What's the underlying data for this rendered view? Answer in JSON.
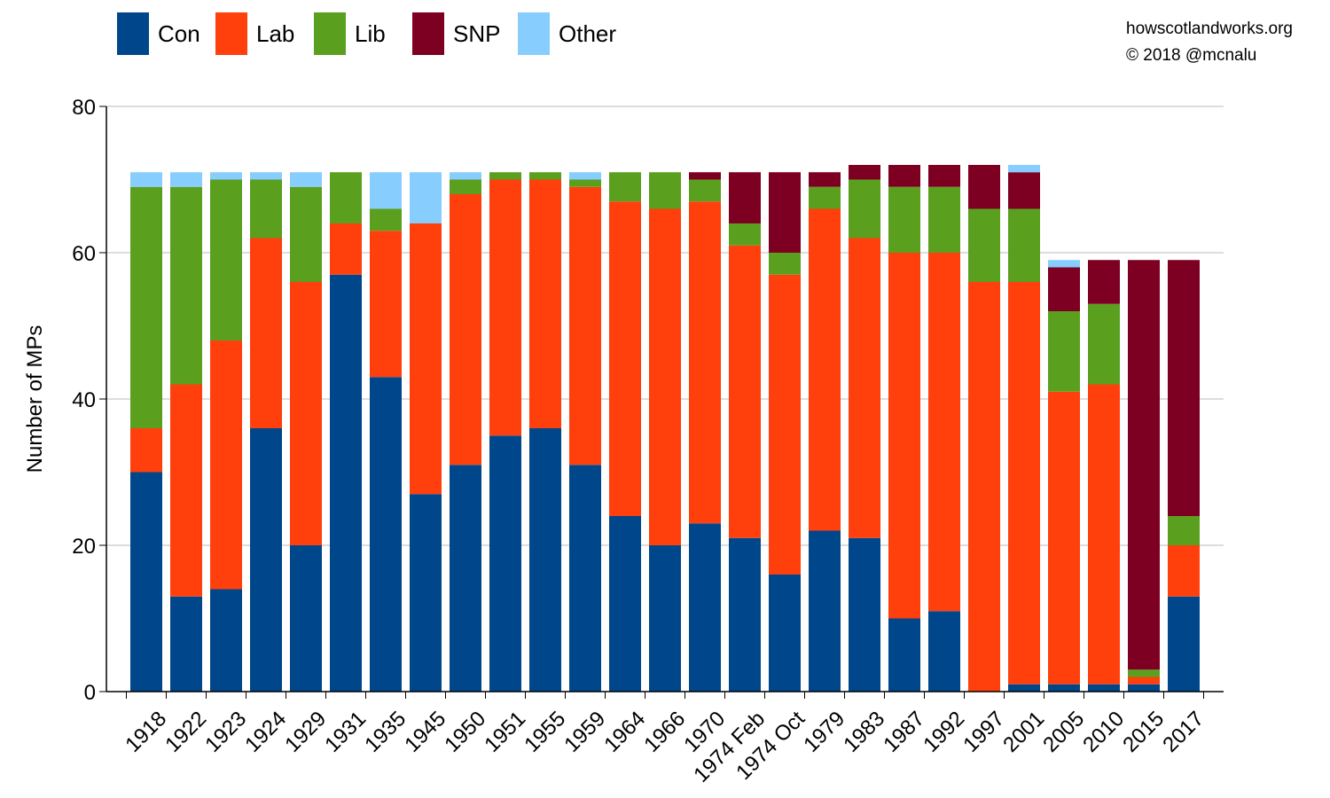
{
  "credits": {
    "site": "howscotlandworks.org",
    "copyright": "© 2018  @mcnalu"
  },
  "colors": {
    "Con": "#00468b",
    "Lab": "#ff3f0c",
    "Lib": "#5aa01e",
    "SNP": "#7d0022",
    "Other": "#87cdfe"
  },
  "chart_data": {
    "type": "bar",
    "stacked": true,
    "title": "",
    "xlabel": "",
    "ylabel": "Number of MPs",
    "ylim": [
      0,
      80
    ],
    "yticks": [
      0,
      20,
      40,
      60,
      80
    ],
    "grid": true,
    "legend_position": "top-left",
    "categories": [
      "1918",
      "1922",
      "1923",
      "1924",
      "1929",
      "1931",
      "1935",
      "1945",
      "1950",
      "1951",
      "1955",
      "1959",
      "1964",
      "1966",
      "1970",
      "1974 Feb",
      "1974 Oct",
      "1979",
      "1983",
      "1987",
      "1992",
      "1997",
      "2001",
      "2005",
      "2010",
      "2015",
      "2017"
    ],
    "series": [
      {
        "name": "Con",
        "values": [
          30,
          13,
          14,
          36,
          20,
          57,
          43,
          27,
          31,
          35,
          36,
          31,
          24,
          20,
          23,
          21,
          16,
          22,
          21,
          10,
          11,
          0,
          1,
          1,
          1,
          1,
          13
        ]
      },
      {
        "name": "Lab",
        "values": [
          6,
          29,
          34,
          26,
          36,
          7,
          20,
          37,
          37,
          35,
          34,
          38,
          43,
          46,
          44,
          40,
          41,
          44,
          41,
          50,
          49,
          56,
          55,
          40,
          41,
          1,
          7
        ]
      },
      {
        "name": "Lib",
        "values": [
          33,
          27,
          22,
          8,
          13,
          7,
          3,
          0,
          2,
          1,
          1,
          1,
          4,
          5,
          3,
          3,
          3,
          3,
          8,
          9,
          9,
          10,
          10,
          11,
          11,
          1,
          4
        ]
      },
      {
        "name": "SNP",
        "values": [
          0,
          0,
          0,
          0,
          0,
          0,
          0,
          0,
          0,
          0,
          0,
          0,
          0,
          0,
          1,
          7,
          11,
          2,
          2,
          3,
          3,
          6,
          5,
          6,
          6,
          56,
          35
        ]
      },
      {
        "name": "Other",
        "values": [
          2,
          2,
          1,
          1,
          2,
          0,
          5,
          7,
          1,
          0,
          0,
          1,
          0,
          0,
          0,
          0,
          0,
          0,
          0,
          0,
          0,
          0,
          1,
          1,
          0,
          0,
          0
        ]
      }
    ]
  }
}
